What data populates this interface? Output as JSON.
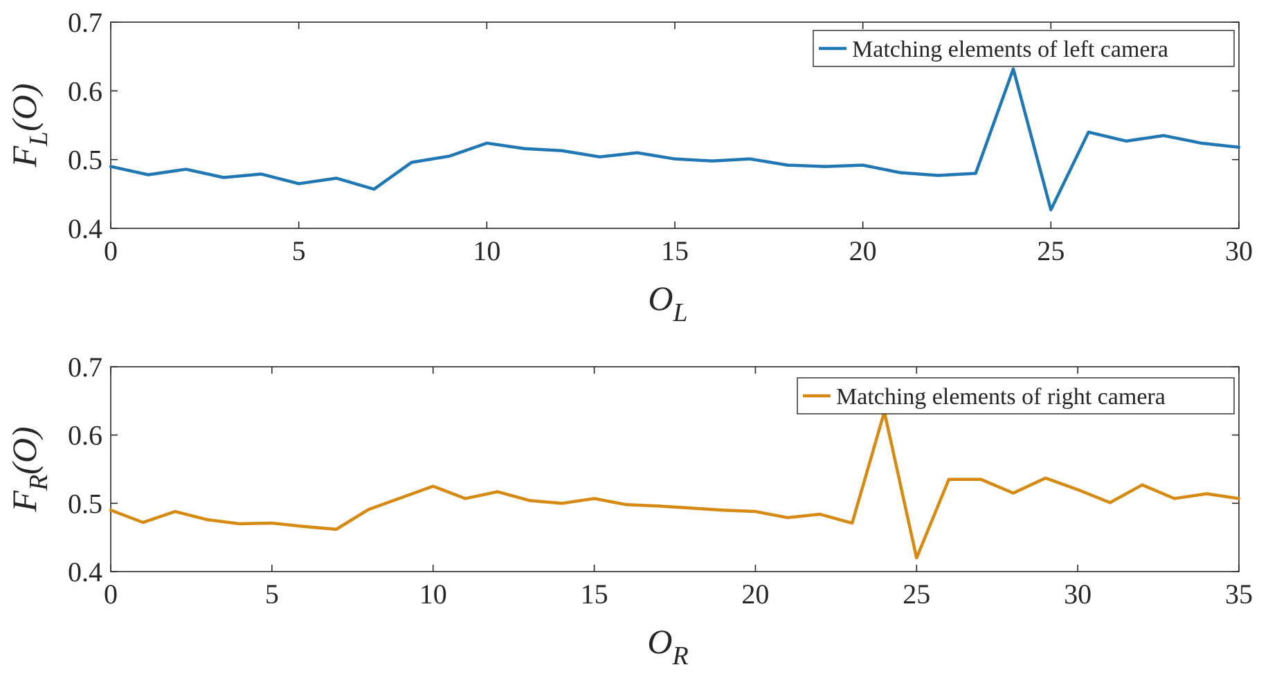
{
  "chart_data": [
    {
      "type": "line",
      "name": "top",
      "xlim": [
        0,
        30
      ],
      "ylim": [
        0.4,
        0.7
      ],
      "xticks": [
        "0",
        "5",
        "10",
        "15",
        "20",
        "25",
        "30"
      ],
      "yticks": [
        "0.4",
        "0.5",
        "0.6",
        "0.7"
      ],
      "xlabel": "O",
      "xlabel_sub": "L",
      "ylabel": "F",
      "ylabel_sub": "L",
      "ylabel_suffix": "(O)",
      "legend": "Matching elements of left camera",
      "legend_position": "top-right",
      "color": "#1f77b4",
      "series": [
        {
          "name": "Matching elements of left camera",
          "x": [
            0,
            1,
            2,
            3,
            4,
            5,
            6,
            7,
            8,
            9,
            10,
            11,
            12,
            13,
            14,
            15,
            16,
            17,
            18,
            19,
            20,
            21,
            22,
            23,
            24,
            25,
            26,
            27,
            28,
            29,
            30
          ],
          "y": [
            0.49,
            0.478,
            0.486,
            0.474,
            0.479,
            0.465,
            0.473,
            0.457,
            0.496,
            0.505,
            0.524,
            0.516,
            0.513,
            0.504,
            0.51,
            0.501,
            0.498,
            0.501,
            0.492,
            0.49,
            0.492,
            0.481,
            0.477,
            0.48,
            0.632,
            0.427,
            0.54,
            0.527,
            0.535,
            0.524,
            0.518
          ]
        }
      ]
    },
    {
      "type": "line",
      "name": "bottom",
      "xlim": [
        0,
        35
      ],
      "ylim": [
        0.4,
        0.7
      ],
      "xticks": [
        "0",
        "5",
        "10",
        "15",
        "20",
        "25",
        "30",
        "35"
      ],
      "yticks": [
        "0.4",
        "0.5",
        "0.6",
        "0.7"
      ],
      "xlabel": "O",
      "xlabel_sub": "R",
      "ylabel": "F",
      "ylabel_sub": "R",
      "ylabel_suffix": "(O)",
      "legend": "Matching elements of right camera",
      "legend_position": "top-right",
      "color": "#d68a12",
      "series": [
        {
          "name": "Matching elements of right camera",
          "x": [
            0,
            1,
            2,
            3,
            4,
            5,
            6,
            7,
            8,
            9,
            10,
            11,
            12,
            13,
            14,
            15,
            16,
            17,
            18,
            19,
            20,
            21,
            22,
            23,
            24,
            25,
            26,
            27,
            28,
            29,
            30,
            31,
            32,
            33,
            34,
            35
          ],
          "y": [
            0.49,
            0.472,
            0.488,
            0.476,
            0.47,
            0.471,
            0.466,
            0.462,
            0.491,
            0.508,
            0.525,
            0.507,
            0.517,
            0.504,
            0.5,
            0.507,
            0.498,
            0.496,
            0.493,
            0.49,
            0.488,
            0.479,
            0.484,
            0.471,
            0.634,
            0.42,
            0.535,
            0.535,
            0.515,
            0.537,
            0.52,
            0.501,
            0.527,
            0.507,
            0.514,
            0.507
          ]
        }
      ]
    }
  ]
}
